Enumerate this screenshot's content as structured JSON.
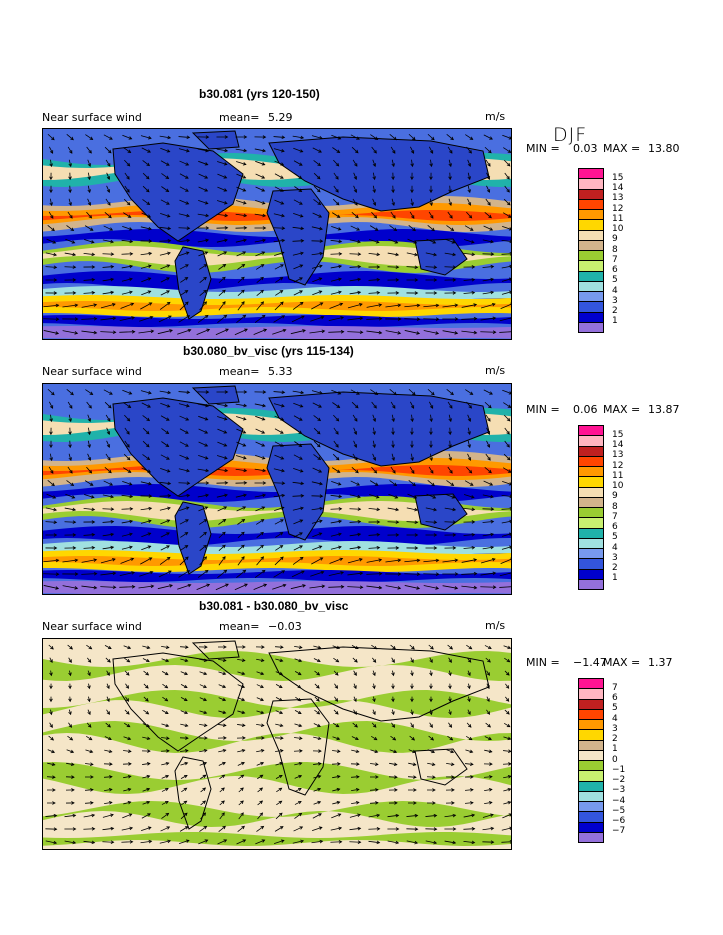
{
  "season": "DJF",
  "panels": [
    {
      "title": "b30.081 (yrs 120-150)",
      "variable": "Near surface wind",
      "mean_label": "mean=",
      "mean": "5.29",
      "units": "m/s",
      "min_label": "MIN =",
      "min": "0.03",
      "max_label": "MAX =",
      "max": "13.80",
      "ticks": [
        "15",
        "14",
        "13",
        "12",
        "11",
        "10",
        "9",
        "8",
        "7",
        "6",
        "5",
        "4",
        "3",
        "2",
        "1"
      ],
      "colors": [
        "#ff1493",
        "#ffb6c1",
        "#c02020",
        "#ff4500",
        "#ff9900",
        "#ffd700",
        "#f5deb3",
        "#d2b48c",
        "#9acd32",
        "#c8f070",
        "#20b2aa",
        "#a0e0e0",
        "#7799ee",
        "#3355dd",
        "#0000cc",
        "#9370db"
      ]
    },
    {
      "title": "b30.080_bv_visc (yrs 115-134)",
      "variable": "Near surface wind",
      "mean_label": "mean=",
      "mean": "5.33",
      "units": "m/s",
      "min_label": "MIN =",
      "min": "0.06",
      "max_label": "MAX =",
      "max": "13.87",
      "ticks": [
        "15",
        "14",
        "13",
        "12",
        "11",
        "10",
        "9",
        "8",
        "7",
        "6",
        "5",
        "4",
        "3",
        "2",
        "1"
      ],
      "colors": [
        "#ff1493",
        "#ffb6c1",
        "#c02020",
        "#ff4500",
        "#ff9900",
        "#ffd700",
        "#f5deb3",
        "#d2b48c",
        "#9acd32",
        "#c8f070",
        "#20b2aa",
        "#a0e0e0",
        "#7799ee",
        "#3355dd",
        "#0000cc",
        "#9370db"
      ]
    },
    {
      "title": "b30.081 - b30.080_bv_visc",
      "variable": "Near surface wind",
      "mean_label": "mean=",
      "mean": "−0.03",
      "units": "m/s",
      "min_label": "MIN =",
      "min": "−1.47",
      "max_label": "MAX =",
      "max": "1.37",
      "ticks": [
        "7",
        "6",
        "5",
        "4",
        "3",
        "2",
        "1",
        "0",
        "−1",
        "−2",
        "−3",
        "−4",
        "−5",
        "−6",
        "−7"
      ],
      "colors": [
        "#ff1493",
        "#ffb6c1",
        "#c02020",
        "#ff4500",
        "#ff9900",
        "#ffd700",
        "#d2b48c",
        "#f5e6c8",
        "#9acd32",
        "#c8f070",
        "#20b2aa",
        "#a0e0e0",
        "#7799ee",
        "#3355dd",
        "#0000cc",
        "#9370db"
      ]
    }
  ]
}
